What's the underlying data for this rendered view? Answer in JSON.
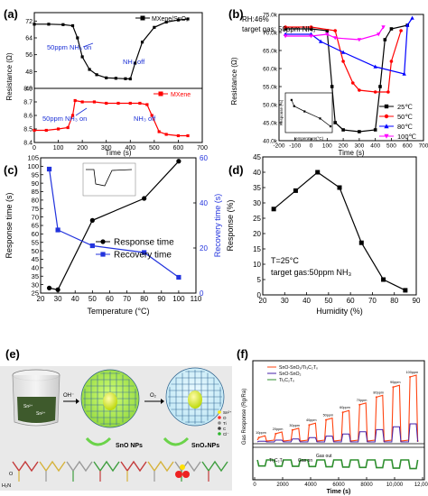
{
  "panels": {
    "a": {
      "letter": "(a)",
      "xlabel": "Time (s)",
      "ylabel": "Resistance (Ω)",
      "top_legend": "MXene/SnO₂",
      "bottom_legend": "MXene",
      "annot_on": "50ppm NH₃ on",
      "annot_off": "NH₃ off"
    },
    "b": {
      "letter": "(b)",
      "info1": "RH:46%",
      "info2": "target gas: 50ppm NH₃",
      "xlabel": "Time (s)",
      "ylabel": "Resistance (Ω)",
      "inset_xlabel": "temperature(°C)",
      "inset_ylabel": "Response (%)"
    },
    "c": {
      "letter": "(c)",
      "xlabel": "Temperature (°C)",
      "ylabel_left": "Response time (s)",
      "ylabel_right": "Recovery time (s)"
    },
    "d": {
      "letter": "(d)",
      "xlabel": "Humidity (%)",
      "ylabel": "Response (%)",
      "note1": "T=25°C",
      "note2": "target gas:50ppm NH₃"
    },
    "e": {
      "letter": "(e)",
      "reagent1": "OH⁻",
      "reagent2": "O₂",
      "label_sno": "SnO NPs",
      "label_sno2": "SnO₂NPs",
      "ion1": "Sn²⁺",
      "ion2": "Sn²⁺",
      "carboxyl": "H₂N",
      "carbonyl": "O",
      "legend_items": [
        "Sn²⁺",
        "O",
        "Ti",
        "C",
        "Cl⁻"
      ]
    },
    "f": {
      "letter": "(f)",
      "ylabel": "Gas Response (Rg/Ra)",
      "xlabel": "Time (s)",
      "tag_mid1": "Gas on",
      "tag_mid2": "Gas out",
      "tag_bottom": "Ti₃C₂Tₓ",
      "concentrations": [
        "10ppm",
        "20ppm",
        "30ppm",
        "40ppm",
        "50ppm",
        "60ppm",
        "70ppm",
        "80ppm",
        "90ppm",
        "100ppm"
      ]
    }
  },
  "chart_data": [
    {
      "panel": "a-top",
      "type": "line",
      "title": "",
      "xlabel": "Time (s)",
      "ylabel": "Resistance (Ω)",
      "xlim": [
        0,
        700
      ],
      "ylim": [
        40,
        76
      ],
      "x_ticks": [
        0,
        100,
        200,
        300,
        400,
        500,
        600,
        700
      ],
      "y_ticks": [
        40,
        48,
        56,
        64,
        72
      ],
      "series": [
        {
          "name": "MXene/SnO₂",
          "color": "#000000",
          "x": [
            0,
            60,
            120,
            160,
            180,
            200,
            230,
            260,
            300,
            340,
            380,
            400,
            420,
            450,
            500,
            550,
            600,
            640
          ],
          "y": [
            70.5,
            70.5,
            70.3,
            69.8,
            64,
            55,
            49,
            46.5,
            45,
            44.8,
            44.6,
            44.5,
            52,
            62,
            69,
            71.5,
            72.5,
            73
          ]
        }
      ]
    },
    {
      "panel": "a-bottom",
      "type": "line",
      "title": "",
      "xlabel": "Time (s)",
      "ylabel": "Resistance (Ω)",
      "xlim": [
        0,
        700
      ],
      "ylim": [
        8.4,
        8.8
      ],
      "x_ticks": [
        0,
        100,
        200,
        300,
        400,
        500,
        600,
        700
      ],
      "y_ticks": [
        8.4,
        8.5,
        8.6,
        8.7,
        8.8
      ],
      "series": [
        {
          "name": "MXene",
          "color": "#ff0000",
          "x": [
            0,
            50,
            100,
            140,
            160,
            170,
            200,
            250,
            300,
            350,
            400,
            440,
            470,
            490,
            520,
            550,
            600,
            640
          ],
          "y": [
            8.49,
            8.49,
            8.5,
            8.51,
            8.6,
            8.71,
            8.7,
            8.7,
            8.69,
            8.69,
            8.69,
            8.69,
            8.68,
            8.6,
            8.48,
            8.46,
            8.45,
            8.45
          ]
        }
      ]
    },
    {
      "panel": "b",
      "type": "line",
      "title": "",
      "xlabel": "Time (s)",
      "ylabel": "Resistance (Ω)",
      "xlim": [
        -200,
        700
      ],
      "ylim": [
        40000,
        75000
      ],
      "x_ticks": [
        -200,
        -100,
        0,
        100,
        200,
        300,
        400,
        500,
        600,
        700
      ],
      "y_ticks": [
        40000,
        45000,
        50000,
        55000,
        60000,
        65000,
        70000,
        75000
      ],
      "y_tick_labels": [
        "40.0k",
        "45.0k",
        "50.0k",
        "55.0k",
        "60.0k",
        "65.0k",
        "70.0k",
        "75.0k"
      ],
      "legend_position": "right",
      "series": [
        {
          "name": "25℃",
          "color": "#000000",
          "marker": "square",
          "x": [
            -160,
            0,
            100,
            130,
            150,
            200,
            300,
            400,
            430,
            460,
            500,
            600
          ],
          "y": [
            71000,
            71000,
            70500,
            55000,
            45000,
            43000,
            42500,
            43000,
            55000,
            68000,
            71000,
            72000
          ]
        },
        {
          "name": "50℃",
          "color": "#ff0000",
          "marker": "circle",
          "x": [
            -160,
            0,
            150,
            200,
            260,
            300,
            400,
            480,
            500,
            560
          ],
          "y": [
            71500,
            71500,
            70500,
            62000,
            56000,
            54000,
            53500,
            53500,
            62000,
            70500
          ]
        },
        {
          "name": "80℃",
          "color": "#0000ff",
          "marker": "triangle",
          "x": [
            -160,
            0,
            60,
            200,
            400,
            580,
            600,
            630
          ],
          "y": [
            69500,
            69500,
            67500,
            64500,
            60500,
            58500,
            72000,
            74000
          ]
        },
        {
          "name": "100℃",
          "color": "#ff00ff",
          "marker": "triangle-down",
          "x": [
            -160,
            0,
            100,
            150,
            300,
            420,
            450
          ],
          "y": [
            69000,
            69000,
            69500,
            68500,
            68000,
            69500,
            71500
          ]
        }
      ]
    },
    {
      "panel": "b-inset",
      "type": "line",
      "title": "",
      "xlabel": "temperature(°C)",
      "ylabel": "Response (%)",
      "xlim": [
        20,
        100
      ],
      "ylim": [
        0,
        40
      ],
      "series": [
        {
          "name": "",
          "color": "#000000",
          "x": [
            25,
            30,
            50,
            80,
            100
          ],
          "y": [
            35,
            28,
            22,
            14,
            5
          ]
        }
      ]
    },
    {
      "panel": "c",
      "type": "line",
      "title": "",
      "xlabel": "Temperature (°C)",
      "ylabel": "Response time (s)",
      "y2label": "Recovery time (s)",
      "xlim": [
        20,
        110
      ],
      "ylim": [
        25,
        105
      ],
      "y2lim": [
        0,
        60
      ],
      "x_ticks": [
        20,
        30,
        40,
        50,
        60,
        70,
        80,
        90,
        100,
        110
      ],
      "y_ticks": [
        25,
        30,
        35,
        40,
        45,
        50,
        55,
        60,
        65,
        70,
        75,
        80,
        85,
        90,
        95,
        100,
        105
      ],
      "y2_ticks": [
        0,
        20,
        40,
        60
      ],
      "legend_position": "center-right",
      "series": [
        {
          "name": "Response time",
          "color": "#000000",
          "marker": "circle",
          "axis": "left",
          "x": [
            25,
            30,
            50,
            80,
            100
          ],
          "y": [
            28,
            27,
            68,
            81,
            103
          ]
        },
        {
          "name": "Recovery time",
          "color": "#2233dd",
          "marker": "square",
          "axis": "right",
          "x": [
            25,
            30,
            50,
            80,
            100
          ],
          "y": [
            55,
            28,
            21,
            18,
            7
          ]
        }
      ]
    },
    {
      "panel": "d",
      "type": "line",
      "title": "",
      "xlabel": "Humidity (%)",
      "ylabel": "Response (%)",
      "xlim": [
        20,
        90
      ],
      "ylim": [
        0,
        45
      ],
      "x_ticks": [
        20,
        30,
        40,
        50,
        60,
        70,
        80,
        90
      ],
      "y_ticks": [
        0,
        5,
        10,
        15,
        20,
        25,
        30,
        35,
        40,
        45
      ],
      "series": [
        {
          "name": "",
          "color": "#000000",
          "marker": "square",
          "x": [
            25,
            35,
            45,
            55,
            65,
            75,
            85
          ],
          "y": [
            28,
            34,
            40,
            35,
            17,
            5,
            1.5
          ]
        }
      ]
    },
    {
      "panel": "f",
      "type": "line",
      "title": "",
      "xlabel": "Time (s)",
      "ylabel": "Gas Response (Rg/Ra)",
      "xlim": [
        0,
        12000
      ],
      "x_ticks": [
        0,
        2000,
        4000,
        6000,
        8000,
        10000,
        12000
      ],
      "x_tick_labels": [
        "0",
        "2000",
        "4000",
        "6000",
        "8000",
        "10,000",
        "12,000"
      ],
      "series": [
        {
          "name": "SnO-SnO₂/Ti₃C₂Tₓ",
          "color": "#ff4411"
        },
        {
          "name": "SnO-SnO₂",
          "color": "#4422aa"
        },
        {
          "name": "Ti₃C₂Tₓ",
          "color": "#2f8f2f"
        }
      ],
      "peaks_top": [
        1.2,
        1.5,
        1.8,
        2.2,
        2.6,
        3.2,
        3.8,
        4.4,
        5.2,
        6.0
      ]
    }
  ]
}
